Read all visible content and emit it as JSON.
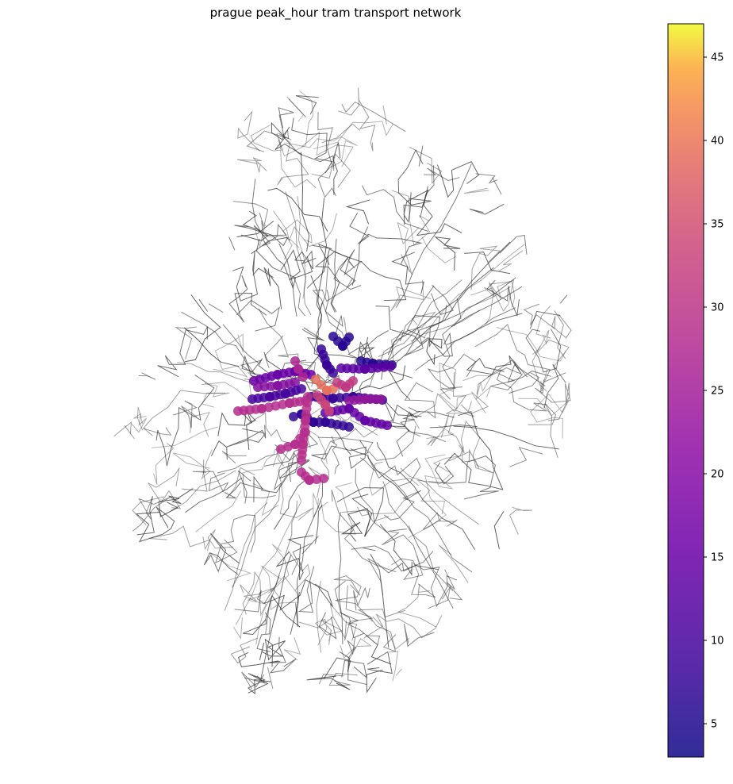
{
  "title": "prague peak_hour tram transport network",
  "colorbar": {
    "cmap": "plasma",
    "min": 3,
    "max": 47,
    "ticks": [
      5,
      10,
      15,
      20,
      25,
      30,
      35,
      40,
      45
    ],
    "tick_labels": [
      "5",
      "10",
      "15",
      "20",
      "25",
      "30",
      "35",
      "40",
      "45"
    ]
  },
  "colors": {
    "network_line": "#333333",
    "background": "#ffffff"
  },
  "chart_data": {
    "type": "map",
    "description_of_layers": "background road/transport network lines; tram stops colored by value",
    "value_range": [
      3,
      47
    ]
  }
}
